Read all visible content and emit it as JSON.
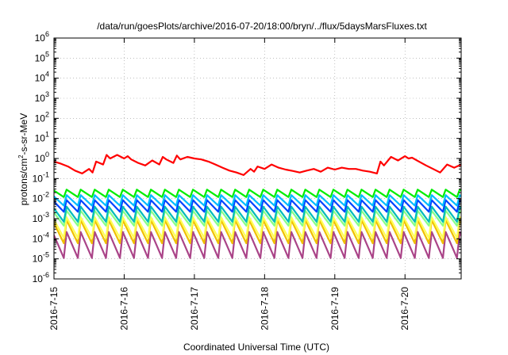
{
  "chart_data": {
    "type": "line",
    "title": "/data/run/goesPlots/archive/2016-07-20/18:00/bryn/../flux/5daysMarsFluxes.txt",
    "xlabel": "Coordinated Universal Time (UTC)",
    "ylabel": {
      "prefix": "protons/cm",
      "sup": "2",
      "suffix": "-s-sr-MeV"
    },
    "log_scale_y": true,
    "ylim": [
      1e-06,
      1000000.0
    ],
    "xlim_days": [
      0,
      5.8
    ],
    "grid": true,
    "legend": "none",
    "y_ticks": [
      {
        "base": "10",
        "exp": "-6",
        "value": 1e-06
      },
      {
        "base": "10",
        "exp": "-5",
        "value": 1e-05
      },
      {
        "base": "10",
        "exp": "-4",
        "value": 0.0001
      },
      {
        "base": "10",
        "exp": "-3",
        "value": 0.001
      },
      {
        "base": "10",
        "exp": "-2",
        "value": 0.01
      },
      {
        "base": "10",
        "exp": "-1",
        "value": 0.1
      },
      {
        "base": "10",
        "exp": "0",
        "value": 1
      },
      {
        "base": "10",
        "exp": "1",
        "value": 10
      },
      {
        "base": "10",
        "exp": "2",
        "value": 100
      },
      {
        "base": "10",
        "exp": "3",
        "value": 1000
      },
      {
        "base": "10",
        "exp": "4",
        "value": 10000
      },
      {
        "base": "10",
        "exp": "5",
        "value": 100000
      },
      {
        "base": "10",
        "exp": "6",
        "value": 1000000
      }
    ],
    "x_ticks": [
      {
        "label": "2016-7-15",
        "value": 0
      },
      {
        "label": "2016-7-16",
        "value": 1
      },
      {
        "label": "2016-7-17",
        "value": 2
      },
      {
        "label": "2016-7-18",
        "value": 3
      },
      {
        "label": "2016-7-19",
        "value": 4
      },
      {
        "label": "2016-7-20",
        "value": 5
      }
    ],
    "series": [
      {
        "color": "#ff0000",
        "x": [
          0,
          0.1,
          0.2,
          0.3,
          0.4,
          0.5,
          0.55,
          0.6,
          0.7,
          0.75,
          0.8,
          0.9,
          1.0,
          1.05,
          1.1,
          1.2,
          1.3,
          1.4,
          1.5,
          1.55,
          1.6,
          1.7,
          1.75,
          1.8,
          1.9,
          2.0,
          2.1,
          2.2,
          2.3,
          2.4,
          2.5,
          2.6,
          2.7,
          2.8,
          2.85,
          2.9,
          3.0,
          3.1,
          3.2,
          3.3,
          3.4,
          3.5,
          3.6,
          3.7,
          3.8,
          3.9,
          4.0,
          4.1,
          4.2,
          4.3,
          4.4,
          4.5,
          4.6,
          4.65,
          4.7,
          4.8,
          4.9,
          5.0,
          5.05,
          5.1,
          5.2,
          5.3,
          5.4,
          5.5,
          5.6,
          5.7,
          5.8
        ],
        "values": [
          0.7,
          0.55,
          0.4,
          0.25,
          0.18,
          0.3,
          0.2,
          0.7,
          0.5,
          1.5,
          1.0,
          1.5,
          1.0,
          1.3,
          0.9,
          0.6,
          0.45,
          0.8,
          0.5,
          1.2,
          0.9,
          0.6,
          1.4,
          0.9,
          1.2,
          1.0,
          0.9,
          0.7,
          0.5,
          0.35,
          0.25,
          0.2,
          0.15,
          0.3,
          0.22,
          0.4,
          0.3,
          0.5,
          0.35,
          0.28,
          0.24,
          0.2,
          0.25,
          0.3,
          0.22,
          0.35,
          0.28,
          0.35,
          0.3,
          0.3,
          0.25,
          0.22,
          0.18,
          0.7,
          0.45,
          1.2,
          0.8,
          1.3,
          1.0,
          1.1,
          0.7,
          0.45,
          0.3,
          0.2,
          0.5,
          0.35,
          0.5
        ]
      },
      {
        "color": "#00ee00",
        "period": 0.2,
        "peak": 0.028,
        "trough": 0.012
      },
      {
        "color": "#00bbff",
        "period": 0.2,
        "peak": 0.015,
        "trough": 0.0045
      },
      {
        "color": "#0044ff",
        "period": 0.2,
        "peak": 0.0085,
        "trough": 0.0022
      },
      {
        "color": "#00bbbb",
        "period": 0.2,
        "peak": 0.004,
        "trough": 0.0007
      },
      {
        "color": "#88ff88",
        "period": 0.2,
        "peak": 0.0025,
        "trough": 0.00045
      },
      {
        "color": "#ffff55",
        "period": 0.2,
        "peak": 0.0012,
        "trough": 0.00011
      },
      {
        "color": "#f0c000",
        "period": 0.2,
        "peak": 0.00085,
        "trough": 6e-05
      },
      {
        "color": "#aa4488",
        "period": 0.2,
        "peak": 0.00022,
        "trough": 1.1e-05
      }
    ]
  }
}
